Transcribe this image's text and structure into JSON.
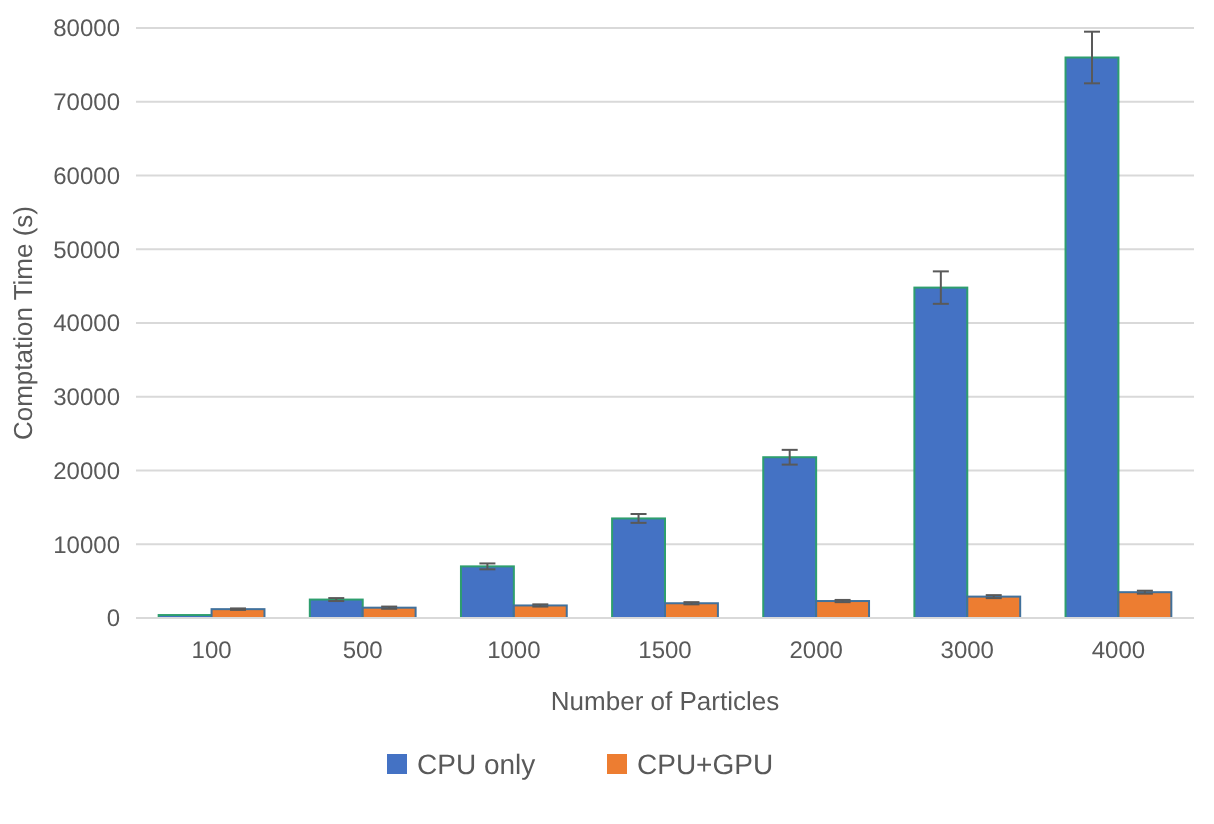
{
  "chart_data": {
    "type": "bar",
    "xlabel": "Number of Particles",
    "ylabel": "Comptation Time (s)",
    "categories": [
      "100",
      "500",
      "1000",
      "1500",
      "2000",
      "3000",
      "4000"
    ],
    "series": [
      {
        "name": "CPU only",
        "color": "#4472c4",
        "values": [
          400,
          2500,
          7000,
          13500,
          21800,
          44800,
          76000
        ],
        "errors": [
          null,
          200,
          400,
          600,
          1000,
          2200,
          3500
        ]
      },
      {
        "name": "CPU+GPU",
        "color": "#ed7d31",
        "values": [
          1200,
          1400,
          1700,
          2000,
          2300,
          2900,
          3500
        ],
        "errors": [
          100,
          150,
          150,
          150,
          150,
          200,
          200
        ]
      }
    ],
    "ylim": [
      0,
      80000
    ],
    "yticks": [
      0,
      10000,
      20000,
      30000,
      40000,
      50000,
      60000,
      70000,
      80000
    ],
    "grid": "y",
    "legend": "bottom"
  }
}
